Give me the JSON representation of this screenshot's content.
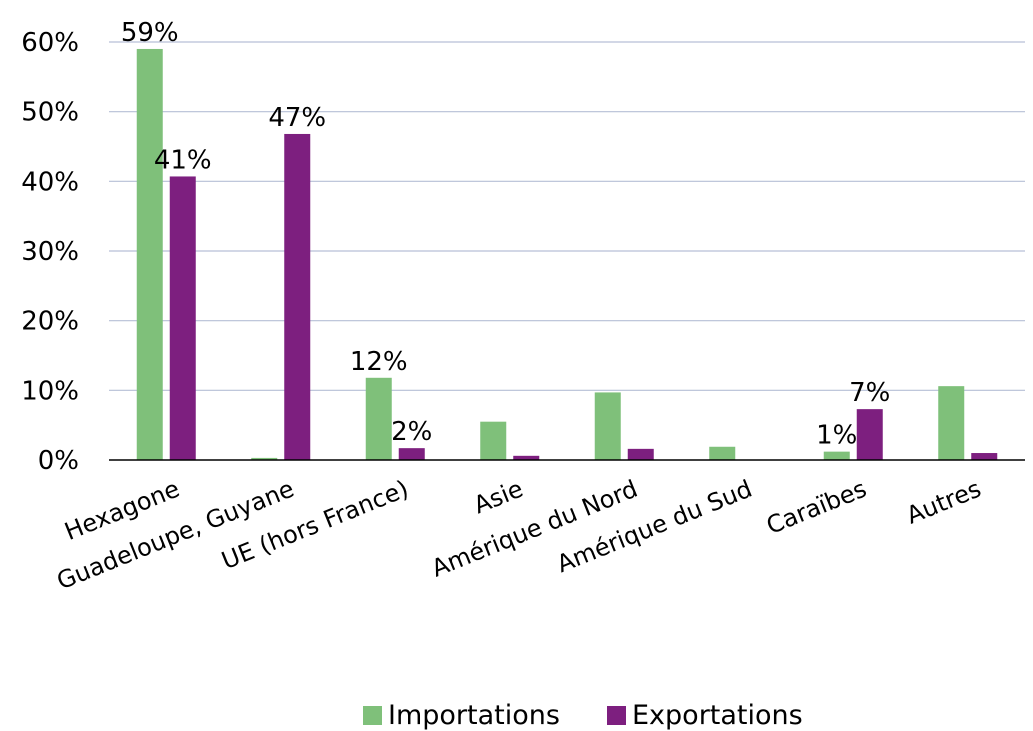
{
  "chart_data": {
    "type": "bar",
    "categories": [
      "Hexagone",
      "Guadeloupe, Guyane",
      "UE (hors France)",
      "Asie",
      "Amérique du Nord",
      "Amérique du Sud",
      "Caraïbes",
      "Autres"
    ],
    "series": [
      {
        "name": "Importations",
        "color": "#7fc07a",
        "values": [
          59,
          0.3,
          11.8,
          5.5,
          9.7,
          1.9,
          1.2,
          10.6
        ],
        "labels": [
          "59%",
          null,
          "12%",
          null,
          null,
          null,
          "1%",
          null
        ]
      },
      {
        "name": "Exportations",
        "color": "#7d1f7f",
        "values": [
          40.7,
          46.8,
          1.7,
          0.6,
          1.6,
          0,
          7.3,
          1.0
        ],
        "labels": [
          "41%",
          "47%",
          "2%",
          null,
          null,
          null,
          "7%",
          null
        ]
      }
    ],
    "ylim": [
      0,
      60
    ],
    "yticks": [
      "0%",
      "10%",
      "20%",
      "30%",
      "40%",
      "50%",
      "60%"
    ],
    "grid": true,
    "legend_position": "bottom"
  }
}
